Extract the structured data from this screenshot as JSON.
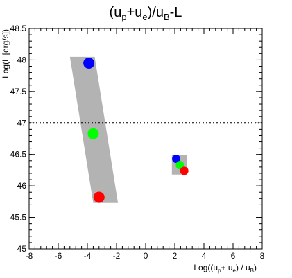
{
  "chart_data": {
    "type": "scatter",
    "title_parts": {
      "open": "(u",
      "s1": "p",
      "plus": "+u",
      "s2": "e",
      "mid": ")/u",
      "s3": "B",
      "tail": "-L"
    },
    "xlabel_parts": {
      "open": "Log((u",
      "s1": "p",
      "plus": "+ u",
      "s2": "e",
      "mid": ") / u",
      "s3": "B",
      "close": ")"
    },
    "ylabel": "Log(L [erg/s])",
    "xlim": [
      -8,
      8
    ],
    "ylim": [
      45,
      48.5
    ],
    "x_ticks": [
      "-8",
      "-6",
      "-4",
      "-2",
      "0",
      "2",
      "4",
      "6",
      "8"
    ],
    "y_ticks": [
      "45",
      "45.5",
      "46",
      "46.5",
      "47",
      "47.5",
      "48",
      "48.5"
    ],
    "reference_line": {
      "y": 47.0,
      "style": "dotted"
    },
    "bands": [
      {
        "name": "",
        "polygon": [
          [
            -5.2,
            48.05
          ],
          [
            -3.5,
            48.05
          ],
          [
            -1.9,
            45.73
          ],
          [
            -3.6,
            45.73
          ]
        ],
        "color": "#b3b3b3"
      },
      {
        "name": "",
        "polygon": [
          [
            1.8,
            46.49
          ],
          [
            2.85,
            46.49
          ],
          [
            2.85,
            46.18
          ],
          [
            1.8,
            46.18
          ]
        ],
        "color": "#b3b3b3"
      }
    ],
    "series": [
      {
        "color": "#0000ff",
        "points": [
          {
            "x": -3.9,
            "y": 47.95,
            "r": 8
          },
          {
            "x": 2.1,
            "y": 46.43,
            "r": 6
          }
        ]
      },
      {
        "color": "#00ff00",
        "points": [
          {
            "x": -3.6,
            "y": 46.83,
            "r": 8
          },
          {
            "x": 2.35,
            "y": 46.33,
            "r": 6
          }
        ]
      },
      {
        "color": "#ff0000",
        "points": [
          {
            "x": -3.2,
            "y": 45.82,
            "r": 8
          },
          {
            "x": 2.65,
            "y": 46.24,
            "r": 6
          }
        ]
      }
    ],
    "grid": false
  }
}
